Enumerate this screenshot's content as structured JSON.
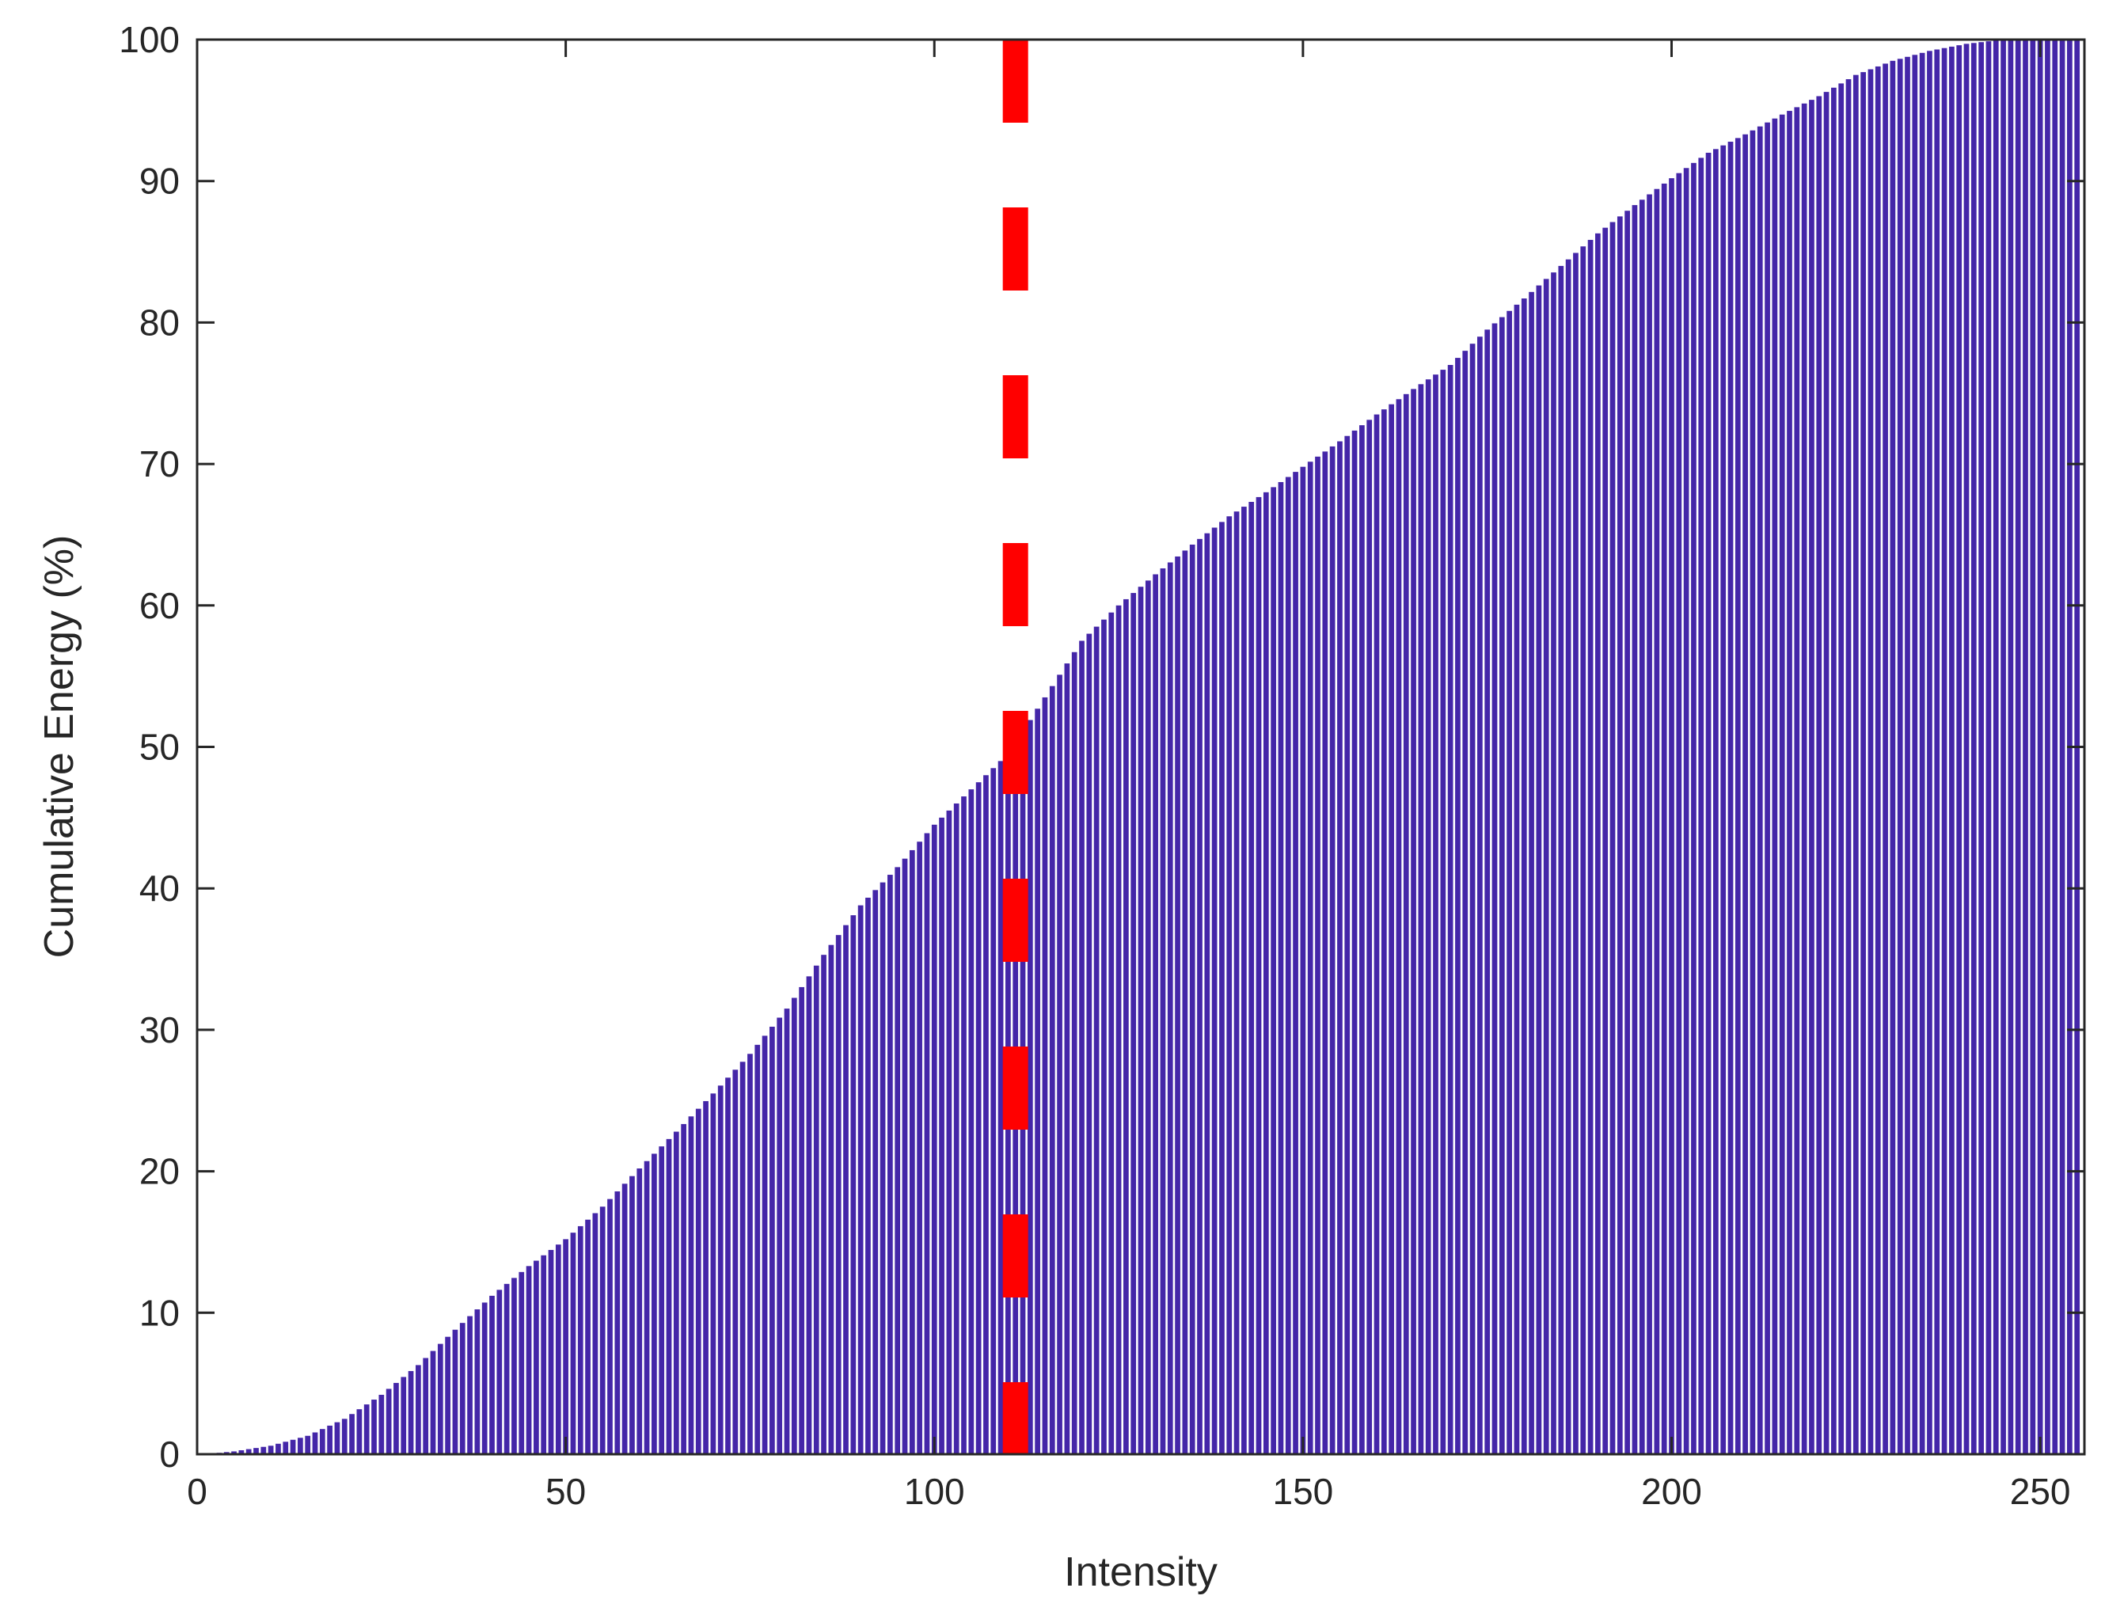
{
  "chart_data": {
    "type": "bar",
    "xlabel": "Intensity",
    "ylabel": "Cumulative Energy (%)",
    "xlim": [
      0,
      256
    ],
    "ylim": [
      0,
      100
    ],
    "x_ticks": [
      0,
      50,
      100,
      150,
      200,
      250
    ],
    "y_ticks": [
      0,
      10,
      20,
      30,
      40,
      50,
      60,
      70,
      80,
      90,
      100
    ],
    "grid": false,
    "legend": "none",
    "bar_color": "#4426A8",
    "bins": {
      "start": 1,
      "end": 255,
      "step": 1
    },
    "control_points": {
      "x": [
        1,
        5,
        10,
        15,
        20,
        25,
        30,
        35,
        40,
        45,
        50,
        55,
        60,
        65,
        70,
        75,
        80,
        85,
        90,
        95,
        100,
        105,
        110,
        115,
        120,
        125,
        130,
        135,
        140,
        145,
        150,
        155,
        160,
        165,
        170,
        175,
        180,
        185,
        190,
        195,
        200,
        205,
        210,
        215,
        220,
        225,
        230,
        235,
        240,
        245,
        250,
        255
      ],
      "y": [
        0,
        0.2,
        0.6,
        1.3,
        2.5,
        4.2,
        6.3,
        8.8,
        11.2,
        13.3,
        15.2,
        17.5,
        20.2,
        22.8,
        25.5,
        28.3,
        31.5,
        35.3,
        38.8,
        41.5,
        44.5,
        47.0,
        49.5,
        53.5,
        57.5,
        60.0,
        62.2,
        64.3,
        66.3,
        68.0,
        69.8,
        71.6,
        73.5,
        75.3,
        77.0,
        79.5,
        81.7,
        84.0,
        86.3,
        88.3,
        90.2,
        92.0,
        93.3,
        94.7,
        96.0,
        97.5,
        98.5,
        99.2,
        99.7,
        100.0,
        100.0,
        100.0
      ]
    },
    "threshold": {
      "x": 111,
      "color": "#FF0000",
      "style": "dashed"
    }
  }
}
